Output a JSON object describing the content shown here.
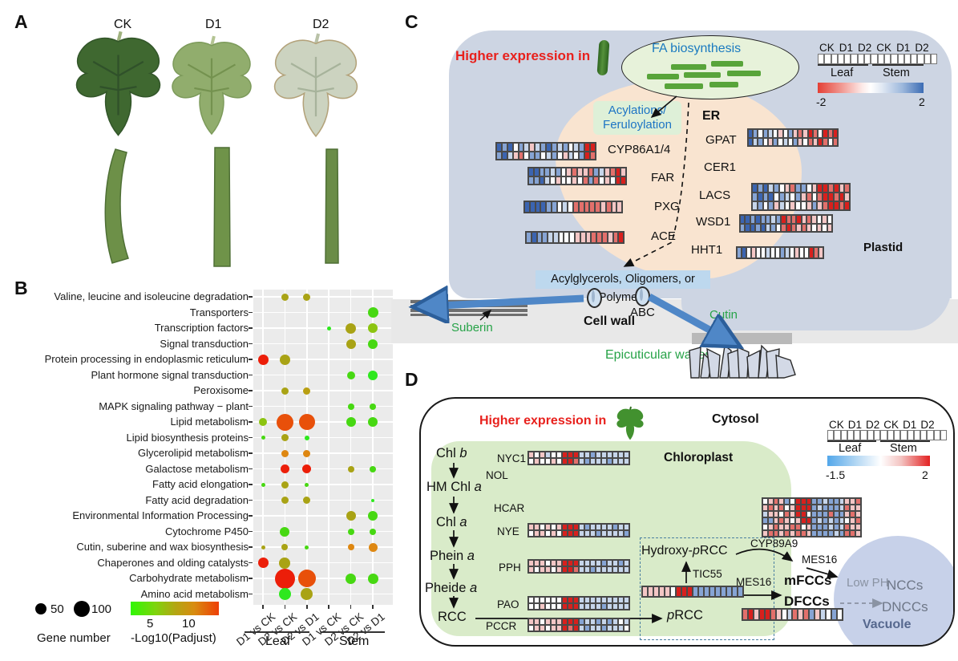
{
  "panelA": {
    "label": "A",
    "samples": [
      "CK",
      "D1",
      "D2"
    ],
    "leaf_colors": [
      "#3f6830",
      "#91ad6d",
      "#ccd3c0"
    ],
    "leaf_edge_colors": [
      "#33562a",
      "#7c9a5a",
      "#b3a27a"
    ],
    "vein_colors": [
      "#30512a",
      "#74924f",
      "#a7b39b"
    ],
    "stem_colors": [
      "#6d9048",
      "#6f9349",
      "#6a8c47"
    ]
  },
  "panelB": {
    "label": "B",
    "chart_data": {
      "type": "dotplot",
      "categories": [
        "Valine, leucine and isoleucine degradation",
        "Transporters",
        "Transcription factors",
        "Signal transduction",
        "Protein processing in endoplasmic reticulum",
        "Plant hormone signal transduction",
        "Peroxisome",
        "MAPK signaling pathway − plant",
        "Lipid metabolism",
        "Lipid biosynthesis proteins",
        "Glycerolipid metabolism",
        "Galactose metabolism",
        "Fatty acid elongation",
        "Fatty acid degradation",
        "Environmental Information Processing",
        "Cytochrome P450",
        "Cutin, suberine and wax biosynthesis",
        "Chaperones and olding catalysts",
        "Carbohydrate metabolism",
        "Amino acid metabolism"
      ],
      "columns": [
        "D1 vs CK",
        "D2 vs CK",
        "D2 vs D1",
        "D1 vs CK",
        "D2 vs CK",
        "D2 vs D1"
      ],
      "groups": [
        "Leaf",
        "Stem"
      ],
      "size_legend": {
        "title": "Gene number",
        "values": [
          "50",
          "100"
        ]
      },
      "color_legend": {
        "title": "-Log10(Padjust)",
        "ticks": [
          "5",
          "10"
        ]
      },
      "palette": {
        "red": "#ec1e09",
        "rorange": "#e8500a",
        "orange": "#de8711",
        "olive": "#a9a315",
        "dyellow": "#b99f12",
        "ygreen": "#8cc411",
        "green": "#47d812",
        "bgreen": "#2ee81e"
      },
      "dots": [
        {
          "r": 0,
          "c": 2,
          "d": 9,
          "k": "olive"
        },
        {
          "r": 0,
          "c": 3,
          "d": 9,
          "k": "olive"
        },
        {
          "r": 1,
          "c": 6,
          "d": 13,
          "k": "green"
        },
        {
          "r": 2,
          "c": 4,
          "d": 5,
          "k": "bgreen"
        },
        {
          "r": 2,
          "c": 5,
          "d": 13,
          "k": "olive"
        },
        {
          "r": 2,
          "c": 6,
          "d": 12,
          "k": "ygreen"
        },
        {
          "r": 3,
          "c": 5,
          "d": 12,
          "k": "olive"
        },
        {
          "r": 3,
          "c": 6,
          "d": 12,
          "k": "green"
        },
        {
          "r": 4,
          "c": 1,
          "d": 13,
          "k": "red"
        },
        {
          "r": 4,
          "c": 2,
          "d": 13,
          "k": "olive"
        },
        {
          "r": 5,
          "c": 5,
          "d": 10,
          "k": "green"
        },
        {
          "r": 5,
          "c": 6,
          "d": 12,
          "k": "bgreen"
        },
        {
          "r": 6,
          "c": 2,
          "d": 9,
          "k": "olive"
        },
        {
          "r": 6,
          "c": 3,
          "d": 9,
          "k": "dyellow"
        },
        {
          "r": 7,
          "c": 5,
          "d": 8,
          "k": "green"
        },
        {
          "r": 7,
          "c": 6,
          "d": 8,
          "k": "green"
        },
        {
          "r": 8,
          "c": 1,
          "d": 10,
          "k": "ygreen"
        },
        {
          "r": 8,
          "c": 2,
          "d": 21,
          "k": "rorange"
        },
        {
          "r": 8,
          "c": 3,
          "d": 20,
          "k": "rorange"
        },
        {
          "r": 8,
          "c": 5,
          "d": 12,
          "k": "green"
        },
        {
          "r": 8,
          "c": 6,
          "d": 12,
          "k": "green"
        },
        {
          "r": 9,
          "c": 1,
          "d": 5,
          "k": "green"
        },
        {
          "r": 9,
          "c": 2,
          "d": 9,
          "k": "olive"
        },
        {
          "r": 9,
          "c": 3,
          "d": 6,
          "k": "bgreen"
        },
        {
          "r": 10,
          "c": 2,
          "d": 9,
          "k": "orange"
        },
        {
          "r": 10,
          "c": 3,
          "d": 9,
          "k": "orange"
        },
        {
          "r": 11,
          "c": 2,
          "d": 11,
          "k": "red"
        },
        {
          "r": 11,
          "c": 3,
          "d": 11,
          "k": "red"
        },
        {
          "r": 11,
          "c": 5,
          "d": 8,
          "k": "olive"
        },
        {
          "r": 11,
          "c": 6,
          "d": 8,
          "k": "green"
        },
        {
          "r": 12,
          "c": 1,
          "d": 5,
          "k": "green"
        },
        {
          "r": 12,
          "c": 2,
          "d": 9,
          "k": "olive"
        },
        {
          "r": 12,
          "c": 3,
          "d": 5,
          "k": "green"
        },
        {
          "r": 13,
          "c": 2,
          "d": 9,
          "k": "olive"
        },
        {
          "r": 13,
          "c": 3,
          "d": 9,
          "k": "olive"
        },
        {
          "r": 13,
          "c": 6,
          "d": 4,
          "k": "bgreen"
        },
        {
          "r": 14,
          "c": 5,
          "d": 12,
          "k": "olive"
        },
        {
          "r": 14,
          "c": 6,
          "d": 12,
          "k": "green"
        },
        {
          "r": 15,
          "c": 2,
          "d": 12,
          "k": "green"
        },
        {
          "r": 15,
          "c": 5,
          "d": 8,
          "k": "green"
        },
        {
          "r": 15,
          "c": 6,
          "d": 8,
          "k": "green"
        },
        {
          "r": 16,
          "c": 1,
          "d": 5,
          "k": "olive"
        },
        {
          "r": 16,
          "c": 2,
          "d": 8,
          "k": "olive"
        },
        {
          "r": 16,
          "c": 3,
          "d": 5,
          "k": "green"
        },
        {
          "r": 16,
          "c": 5,
          "d": 8,
          "k": "orange"
        },
        {
          "r": 16,
          "c": 6,
          "d": 11,
          "k": "orange"
        },
        {
          "r": 17,
          "c": 1,
          "d": 13,
          "k": "red"
        },
        {
          "r": 17,
          "c": 2,
          "d": 14,
          "k": "olive"
        },
        {
          "r": 18,
          "c": 2,
          "d": 25,
          "k": "red"
        },
        {
          "r": 18,
          "c": 3,
          "d": 22,
          "k": "rorange"
        },
        {
          "r": 18,
          "c": 5,
          "d": 13,
          "k": "green"
        },
        {
          "r": 18,
          "c": 6,
          "d": 13,
          "k": "green"
        },
        {
          "r": 19,
          "c": 2,
          "d": 15,
          "k": "bgreen"
        },
        {
          "r": 19,
          "c": 3,
          "d": 15,
          "k": "olive"
        }
      ]
    }
  },
  "panelC": {
    "label": "C",
    "higher_expression": "Higher expression in",
    "fa_biosynthesis": "FA biosynthesis",
    "acylations_line1": "Acylations/",
    "acylations_line2": "Feruloylation",
    "er": "ER",
    "genes_right": [
      "GPAT",
      "CER1",
      "LACS",
      "WSD1",
      "HHT1"
    ],
    "genes_left": [
      "CYP86A1/4",
      "FAR",
      "PXG",
      "ACE"
    ],
    "plastid": "Plastid",
    "acylglycerols": "Acylglycerols, Oligomers, or Polymers",
    "cell_wall": "Cell wall",
    "abc": "ABC",
    "suberin": "Suberin",
    "cutin": "Cutin",
    "waxes": "Epicuticular waxes",
    "scale": {
      "header": [
        "CK",
        "D1",
        "D2",
        "CK",
        "D1",
        "D2"
      ],
      "groups": [
        "Leaf",
        "Stem"
      ],
      "min": "-2",
      "max": "2"
    }
  },
  "panelD": {
    "label": "D",
    "higher_expression": "Higher expression in",
    "cytosol": "Cytosol",
    "chloroplast": "Chloroplast",
    "vacuole": "Vacuole",
    "scale": {
      "header": [
        "CK",
        "D1",
        "D2",
        "CK",
        "D1",
        "D2"
      ],
      "groups": [
        "Leaf",
        "Stem"
      ],
      "min": "-1.5",
      "max": "2"
    },
    "metabolites": [
      {
        "pre": "Chl ",
        "it": "b"
      },
      {
        "pre": "HM Chl ",
        "it": "a"
      },
      {
        "pre": "Chl ",
        "it": "a"
      },
      {
        "pre": "Phein ",
        "it": "a"
      },
      {
        "pre": "Pheide ",
        "it": "a"
      },
      {
        "pre": "RCC",
        "it": ""
      }
    ],
    "enzymes": [
      "NYC1",
      "NOL",
      "HCAR",
      "NYE",
      "PPH",
      "PAO",
      "PCCR"
    ],
    "prcc": {
      "it": "p",
      "post": "RCC"
    },
    "hydroxy_prcc": {
      "pre": "Hydroxy-",
      "it": "p",
      "post": "RCC"
    },
    "tic55": "TIC55",
    "cyp89a9": "CYP89A9",
    "mes16": "MES16",
    "mfccs": "mFCCs",
    "dfccs": "DFCCs",
    "low_ph": "Low PH",
    "nccs": "NCCs",
    "dnccs": "DNCCs"
  },
  "heatmaps": {
    "legend_note": "cell tokens: B strong blue, b blue, l light blue, w white, p pink, r red, R strong red",
    "cell_palette": {
      "B": "#3b64b0",
      "b": "#86a4d4",
      "l": "#c6d5ea",
      "w": "#fdfdfe",
      "p": "#f3c6c5",
      "r": "#e2706b",
      "R": "#d8201d"
    },
    "cyp86": [
      "B b B w b l p l b B b l b w l b R R",
      "b B l p r w b b w l b w p l w b R r"
    ],
    "far": [
      "B B b b l b w p r p p r b l p r R p",
      "b b B l w p w w p w r b r w p w R R"
    ],
    "pxg": [
      "B B B B b b w l w r r r r r p r p p"
    ],
    "ace": [
      "b B b b l l w w w p p p r r r p r R"
    ],
    "gpat": [
      "B b w b l w p w b p r p R r w R r R",
      "B l b w p b w l w b p w r p R r w r"
    ],
    "lacs": [
      "B b B l b w p r b b w p R R r R p r",
      "b B b B w b l w b p r w r R R r R p",
      "l b w b p l w p w w p b p r R R r R"
    ],
    "wsd1": [
      "B B b B b b l b R r r R p r p w p w",
      "b B B b B l b w r R r p r p w p w p"
    ],
    "hht1": [
      "b B w p w w l w w b l w p w w R r p"
    ],
    "nyc1": [
      "p w p l w w R R R l l b l l l l l l",
      "w p w w p w R R r l b l l l b l l l"
    ],
    "nye": [
      "p p w p w p R R R l b l l l l b l l",
      "w p p w p w R R R l l l b l l l l b"
    ],
    "pph": [
      "p p p w p p R R R l l l l b l l b l",
      "p w p p w p R R r l l b l l l l l l"
    ],
    "pao": [
      "w w w w w w R R R l l l l l l l l l",
      "w w p w w w R R R l l l l b l l l l"
    ],
    "pccr": [
      "p p w p p p R R R b l l b l b l w l",
      "w p p w p p R r R l b l l b l l l w"
    ],
    "tic55": [
      "p p p p p w R R R b b b b b b b b b"
    ],
    "cyp89a9": [
      "w p r p b w R R R b b l b b l p p r",
      "p r p r w p R R R b l b b b l r p p",
      "l p p w r p R R w b b b r b b p r p",
      "b b p r p w p R R b l b l b l w p r",
      "w p r p p r r w p b b b l b l r p p",
      "p r r p r p r r p b b b b l b r r p"
    ],
    "dfcc": [
      "r R p R R r p w l r p r b p l w b w"
    ]
  }
}
